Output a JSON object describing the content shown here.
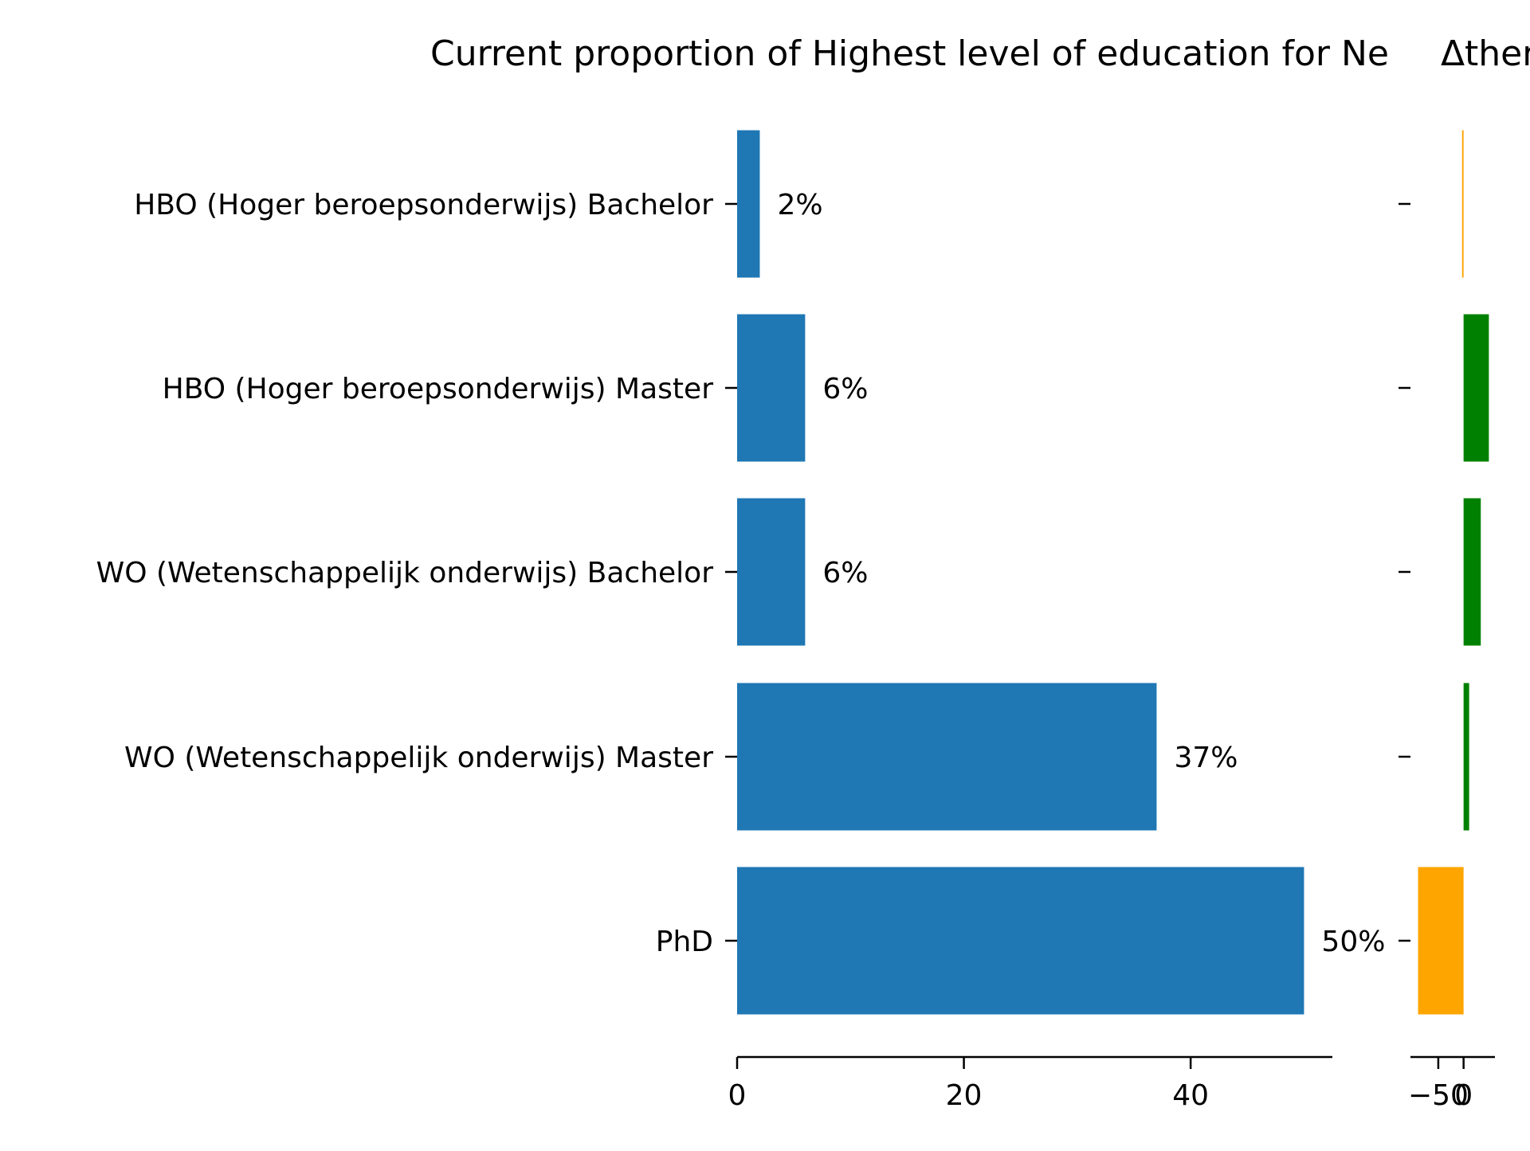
{
  "title_left": "Current proportion of Highest level of education for Ne",
  "title_right": "Δ",
  "title_right_overflow": "ther",
  "chart_data": [
    {
      "type": "bar",
      "orientation": "horizontal",
      "title": "Current proportion of Highest level of education for Ne",
      "categories": [
        "HBO (Hoger beroepsonderwijs) Bachelor",
        "HBO (Hoger beroepsonderwijs) Master",
        "WO (Wetenschappelijk onderwijs) Bachelor",
        "WO (Wetenschappelijk onderwijs) Master",
        "PhD"
      ],
      "values": [
        2,
        6,
        6,
        37,
        50
      ],
      "value_labels": [
        "2%",
        "6%",
        "6%",
        "37%",
        "50%"
      ],
      "xlim": [
        0,
        52.5
      ],
      "xticks": [
        0,
        20,
        40
      ],
      "xtick_labels": [
        "0",
        "20",
        "40"
      ],
      "color": "#1f77b4",
      "grid": false
    },
    {
      "type": "bar",
      "orientation": "horizontal",
      "title": "Δ",
      "categories": [
        "HBO (Hoger beroepsonderwijs) Bachelor",
        "HBO (Hoger beroepsonderwijs) Master",
        "WO (Wetenschappelijk onderwijs) Bachelor",
        "WO (Wetenschappelijk onderwijs) Master",
        "PhD"
      ],
      "values": [
        -3,
        50,
        34,
        11,
        -90
      ],
      "colors": [
        "#ffa500",
        "#008000",
        "#008000",
        "#008000",
        "#ffa500"
      ],
      "xlim": [
        -105,
        62
      ],
      "xticks": [
        -50,
        0
      ],
      "xtick_labels": [
        "−50",
        "0"
      ],
      "grid": false
    }
  ]
}
